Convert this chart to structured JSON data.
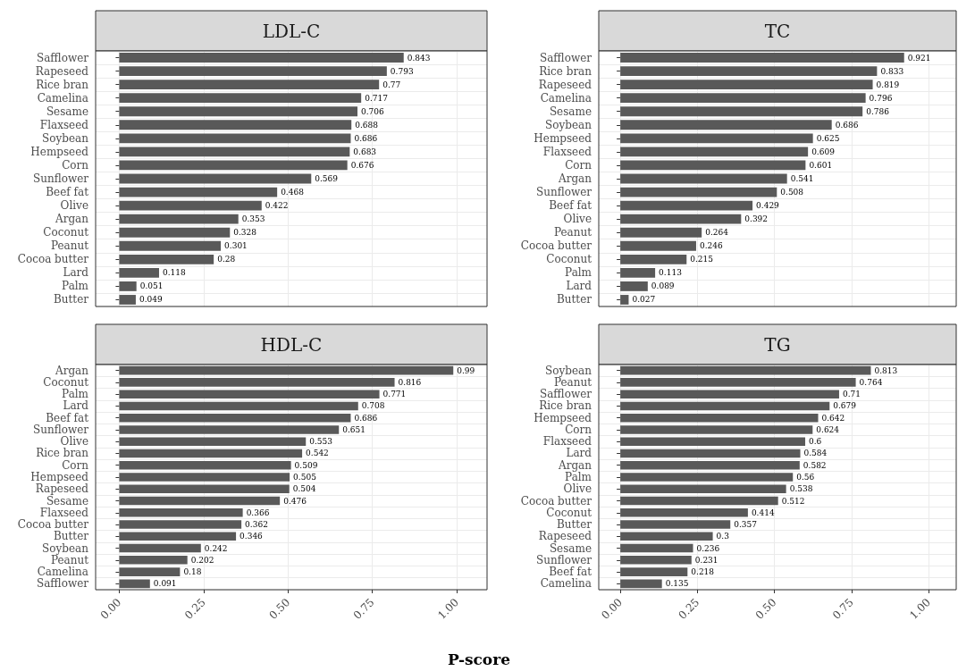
{
  "chart_data": [
    {
      "type": "bar",
      "orientation": "horizontal",
      "title": "LDL-C",
      "categories": [
        "Safflower",
        "Rapeseed",
        "Rice bran",
        "Camelina",
        "Sesame",
        "Flaxseed",
        "Soybean",
        "Hempseed",
        "Corn",
        "Sunflower",
        "Beef fat",
        "Olive",
        "Argan",
        "Coconut",
        "Peanut",
        "Cocoa butter",
        "Lard",
        "Palm",
        "Butter"
      ],
      "values": [
        0.843,
        0.793,
        0.77,
        0.717,
        0.706,
        0.688,
        0.686,
        0.683,
        0.676,
        0.569,
        0.468,
        0.422,
        0.353,
        0.328,
        0.301,
        0.28,
        0.118,
        0.051,
        0.049
      ],
      "color": "#595959",
      "data_labels": true,
      "grid": true,
      "tick_labels": "y",
      "xlim": [
        -0.07,
        1.09
      ],
      "xticks": [
        {
          "value": 0,
          "label": null
        },
        {
          "value": 0.25,
          "label": null
        },
        {
          "value": 0.5,
          "label": null
        },
        {
          "value": 0.75,
          "label": null
        },
        {
          "value": 1,
          "label": null
        }
      ]
    },
    {
      "type": "bar",
      "orientation": "horizontal",
      "title": "TC",
      "categories": [
        "Safflower",
        "Rice bran",
        "Rapeseed",
        "Camelina",
        "Sesame",
        "Soybean",
        "Hempseed",
        "Flaxseed",
        "Corn",
        "Argan",
        "Sunflower",
        "Beef fat",
        "Olive",
        "Peanut",
        "Cocoa butter",
        "Coconut",
        "Palm",
        "Lard",
        "Butter"
      ],
      "values": [
        0.921,
        0.833,
        0.819,
        0.796,
        0.786,
        0.686,
        0.625,
        0.609,
        0.601,
        0.541,
        0.508,
        0.429,
        0.392,
        0.264,
        0.246,
        0.215,
        0.113,
        0.089,
        0.027
      ],
      "color": "#595959",
      "data_labels": true,
      "grid": true,
      "tick_labels": "y",
      "xlim": [
        -0.07,
        1.09
      ],
      "xticks": [
        {
          "value": 0,
          "label": null
        },
        {
          "value": 0.25,
          "label": null
        },
        {
          "value": 0.5,
          "label": null
        },
        {
          "value": 0.75,
          "label": null
        },
        {
          "value": 1,
          "label": null
        }
      ]
    },
    {
      "type": "bar",
      "orientation": "horizontal",
      "title": "HDL-C",
      "xlabel": "P-score",
      "categories": [
        "Argan",
        "Coconut",
        "Palm",
        "Lard",
        "Beef fat",
        "Sunflower",
        "Olive",
        "Rice bran",
        "Corn",
        "Hempseed",
        "Rapeseed",
        "Sesame",
        "Flaxseed",
        "Cocoa butter",
        "Butter",
        "Soybean",
        "Peanut",
        "Camelina",
        "Safflower"
      ],
      "values": [
        0.99,
        0.816,
        0.771,
        0.708,
        0.686,
        0.651,
        0.553,
        0.542,
        0.509,
        0.505,
        0.504,
        0.476,
        0.366,
        0.362,
        0.346,
        0.242,
        0.202,
        0.18,
        0.091
      ],
      "color": "#595959",
      "data_labels": true,
      "grid": true,
      "xlim": [
        -0.07,
        1.09
      ],
      "xticks": [
        {
          "value": 0,
          "label": "0.00"
        },
        {
          "value": 0.25,
          "label": "0.25"
        },
        {
          "value": 0.5,
          "label": "0.50"
        },
        {
          "value": 0.75,
          "label": "0.75"
        },
        {
          "value": 1,
          "label": "1.00"
        }
      ]
    },
    {
      "type": "bar",
      "orientation": "horizontal",
      "title": "TG",
      "categories": [
        "Soybean",
        "Peanut",
        "Safflower",
        "Rice bran",
        "Hempseed",
        "Corn",
        "Flaxseed",
        "Lard",
        "Argan",
        "Palm",
        "Olive",
        "Cocoa butter",
        "Coconut",
        "Butter",
        "Rapeseed",
        "Sesame",
        "Sunflower",
        "Beef fat",
        "Camelina"
      ],
      "values": [
        0.813,
        0.764,
        0.71,
        0.679,
        0.642,
        0.624,
        0.6,
        0.584,
        0.582,
        0.56,
        0.538,
        0.512,
        0.414,
        0.357,
        0.3,
        0.236,
        0.231,
        0.218,
        0.135
      ],
      "color": "#595959",
      "data_labels": true,
      "grid": true,
      "xlim": [
        -0.07,
        1.09
      ],
      "xticks": [
        {
          "value": 0,
          "label": "0.00"
        },
        {
          "value": 0.25,
          "label": "0.25"
        },
        {
          "value": 0.5,
          "label": "0.50"
        },
        {
          "value": 0.75,
          "label": "0.75"
        },
        {
          "value": 1,
          "label": "1.00"
        }
      ]
    }
  ]
}
